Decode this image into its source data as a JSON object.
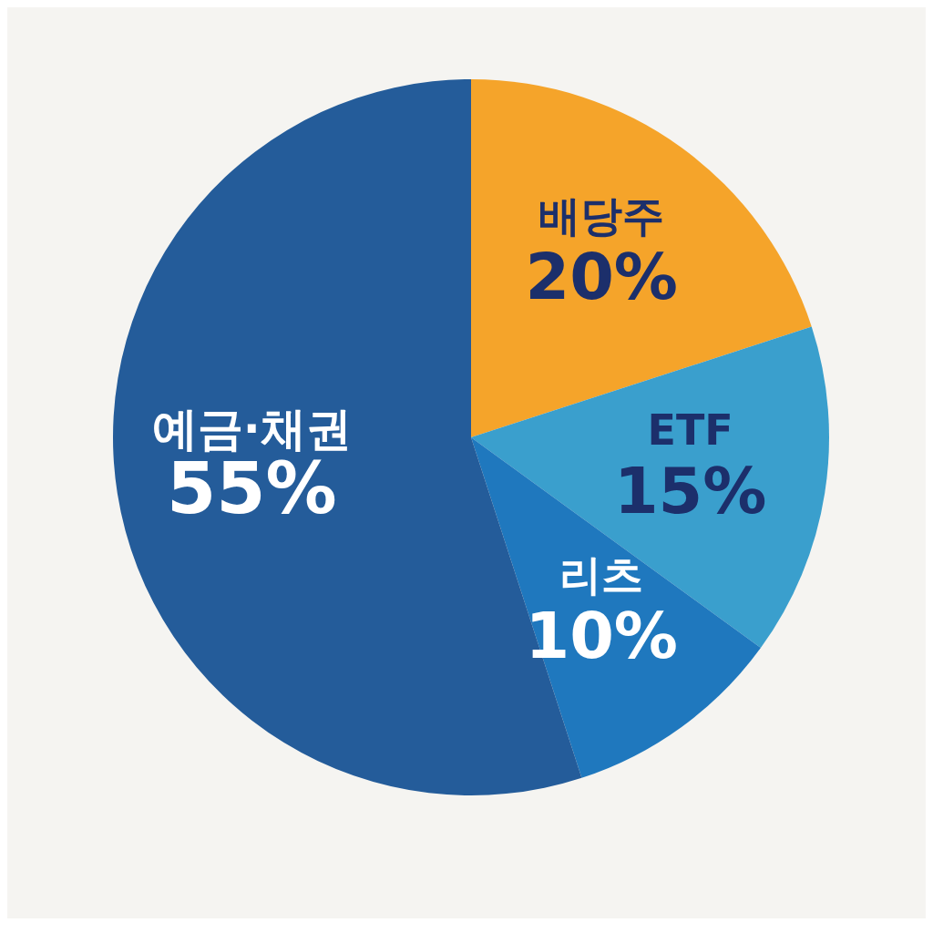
{
  "chart_data": {
    "type": "pie",
    "categories": [
      "배당주",
      "ETF",
      "리츠",
      "예금·채권"
    ],
    "values": [
      20,
      15,
      10,
      55
    ],
    "value_labels": [
      "20%",
      "15%",
      "10%",
      "55%"
    ],
    "colors": [
      "#f5a42a",
      "#3a9fcd",
      "#1f78be",
      "#245c9a"
    ],
    "legend": false
  }
}
